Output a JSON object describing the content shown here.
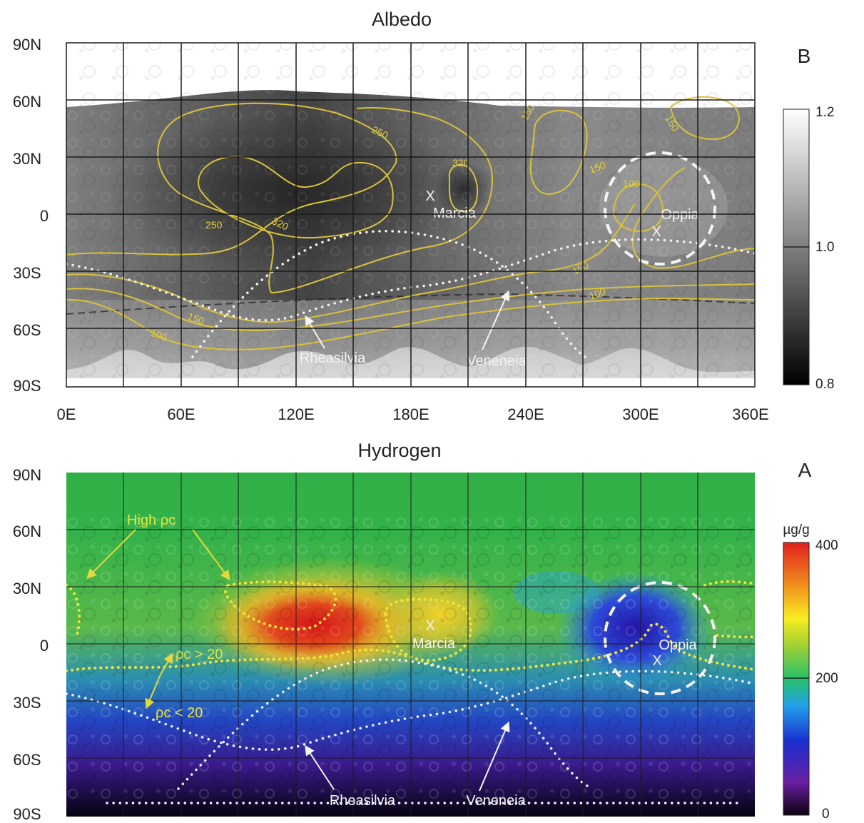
{
  "albedo_panel": {
    "title": "Albedo",
    "panel_letter": "B",
    "y_ticks": [
      "90N",
      "60N",
      "30N",
      "0",
      "30S",
      "60S",
      "90S"
    ],
    "x_ticks": [
      "0E",
      "60E",
      "120E",
      "180E",
      "240E",
      "300E",
      "360E"
    ],
    "colorbar": {
      "max": "1.2",
      "mid": "1.0",
      "min": "0.8",
      "colors": [
        "#000000",
        "#ffffff"
      ]
    },
    "contour_labels": [
      "250",
      "320",
      "250",
      "320",
      "320",
      "150",
      "150",
      "100",
      "150",
      "100",
      "150",
      "150",
      "100"
    ],
    "place_labels": [
      "Marcia",
      "Oppia",
      "Rheasilvia",
      "Veneneia"
    ],
    "crater_marker": "X"
  },
  "hydrogen_panel": {
    "title": "Hydrogen",
    "panel_letter": "A",
    "y_ticks": [
      "90N",
      "60N",
      "30N",
      "0",
      "30S",
      "60S",
      "90S"
    ],
    "colorbar": {
      "unit": "µg/g",
      "max": "400",
      "mid": "200",
      "min": "0",
      "colors": [
        "#0a0010",
        "#6a1fa0",
        "#1a2ed0",
        "#21a0e8",
        "#26c06a",
        "#9fd034",
        "#f7ec22",
        "#f08a1c",
        "#e0201f"
      ]
    },
    "annotation_high": "High ρc",
    "annotation_gt": "ρc > 20",
    "annotation_lt": "ρc < 20",
    "place_labels": [
      "Marcia",
      "Oppia",
      "Rheasilvia",
      "Veneneia"
    ],
    "crater_marker": "X"
  },
  "colors": {
    "contour": "#d8c23c",
    "boundary": "#f2f2f2",
    "region_dots": "#efe43a",
    "grid": "#1b1b1b"
  }
}
